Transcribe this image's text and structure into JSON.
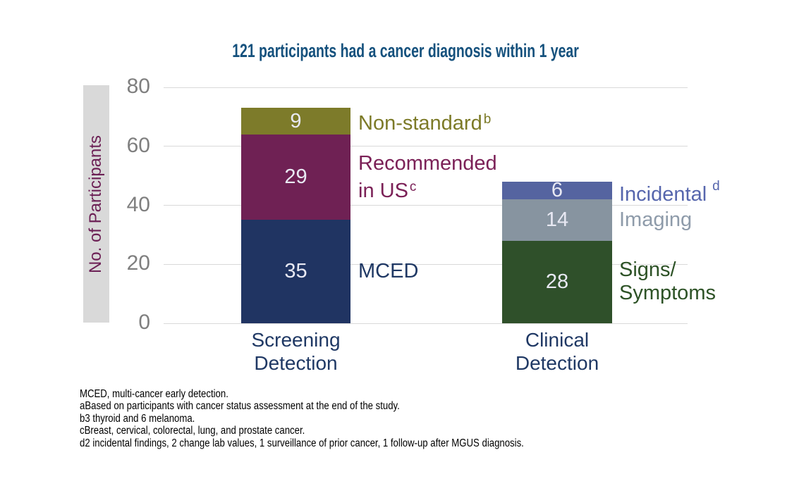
{
  "title": "121 participants had a cancer diagnosis within 1 year",
  "y_axis": {
    "label": "No. of Participants",
    "ticks": [
      80,
      60,
      40,
      20,
      0
    ],
    "max": 80
  },
  "colors": {
    "title": "#15517d",
    "axis_tick": "#7f7f7f",
    "gridline": "#d9d9d9",
    "ylabel_strip": "#d9d9d9",
    "ylabel_text": "#6c2055",
    "category_label": "#1f3864",
    "segment_value_text": "#e8e9f3",
    "footnote_text": "#000000"
  },
  "chart_data": {
    "type": "bar",
    "stacked": true,
    "title": "121 participants had a cancer diagnosis within 1 year",
    "xlabel": "",
    "ylabel": "No. of Participants",
    "ylim": [
      0,
      80
    ],
    "grid": "horizontal",
    "legend_position": "labels-beside-segments",
    "categories": [
      "Screening Detection",
      "Clinical Detection"
    ],
    "bars": [
      {
        "category_lines": [
          "Screening",
          "Detection"
        ],
        "segments": [
          {
            "name": "mced",
            "value": 35,
            "color": "#203462",
            "label_lines": [
              "MCED"
            ],
            "sup": "",
            "sup_high": false,
            "label_color": "#1f3864"
          },
          {
            "name": "recommended-in-us",
            "value": 29,
            "color": "#6f2154",
            "label_lines": [
              "Recommended",
              "in US"
            ],
            "sup": "c",
            "sup_high": false,
            "label_color": "#7b2157"
          },
          {
            "name": "non-standard",
            "value": 9,
            "color": "#7d7b2a",
            "label_lines": [
              "Non-standard"
            ],
            "sup": "b",
            "sup_high": false,
            "label_color": "#7c7a27"
          }
        ]
      },
      {
        "category_lines": [
          "Clinical",
          "Detection"
        ],
        "segments": [
          {
            "name": "signs-symptoms",
            "value": 28,
            "color": "#2f502a",
            "label_lines": [
              "Signs/",
              "Symptoms"
            ],
            "sup": "",
            "sup_high": false,
            "label_color": "#2d5226"
          },
          {
            "name": "imaging",
            "value": 14,
            "color": "#8794a0",
            "label_lines": [
              "Imaging"
            ],
            "sup": "",
            "sup_high": false,
            "label_color": "#8e9baa"
          },
          {
            "name": "incidental",
            "value": 6,
            "color": "#5564a0",
            "label_lines": [
              "Incidental"
            ],
            "sup": "d",
            "sup_high": true,
            "label_color": "#5666ad"
          }
        ]
      }
    ]
  },
  "footnotes": [
    "MCED, multi-cancer early detection.",
    "aBased on participants with cancer status assessment at the end of the study.",
    "b3 thyroid and 6 melanoma.",
    "cBreast, cervical, colorectal, lung, and prostate cancer.",
    "d2 incidental findings, 2 change lab values, 1 surveillance of prior cancer, 1 follow-up after MGUS diagnosis."
  ]
}
